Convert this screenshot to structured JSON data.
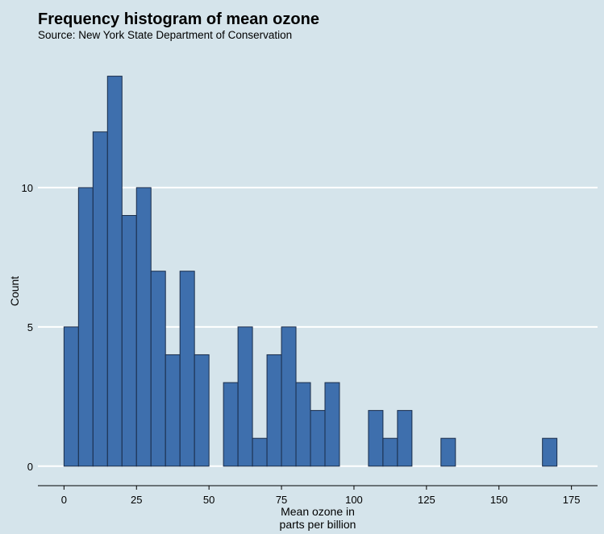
{
  "chart_data": {
    "type": "bar",
    "title": "Frequency histogram of mean ozone",
    "subtitle": "Source: New York State Department of Conservation",
    "xlabel_lines": [
      "Mean ozone in",
      "parts per billion"
    ],
    "ylabel": "Count",
    "bin_width": 5,
    "xlim": [
      -9,
      184
    ],
    "ylim": [
      -0.7,
      15
    ],
    "x_ticks": [
      0,
      25,
      50,
      75,
      100,
      125,
      150,
      175
    ],
    "y_ticks": [
      0,
      5,
      10
    ],
    "grid": "horizontal",
    "bins": [
      {
        "x": 2.5,
        "count": 5
      },
      {
        "x": 7.5,
        "count": 10
      },
      {
        "x": 12.5,
        "count": 12
      },
      {
        "x": 17.5,
        "count": 14
      },
      {
        "x": 22.5,
        "count": 9
      },
      {
        "x": 27.5,
        "count": 10
      },
      {
        "x": 32.5,
        "count": 7
      },
      {
        "x": 37.5,
        "count": 4
      },
      {
        "x": 42.5,
        "count": 7
      },
      {
        "x": 47.5,
        "count": 4
      },
      {
        "x": 52.5,
        "count": 0
      },
      {
        "x": 57.5,
        "count": 3
      },
      {
        "x": 62.5,
        "count": 5
      },
      {
        "x": 67.5,
        "count": 1
      },
      {
        "x": 72.5,
        "count": 4
      },
      {
        "x": 77.5,
        "count": 5
      },
      {
        "x": 82.5,
        "count": 3
      },
      {
        "x": 87.5,
        "count": 2
      },
      {
        "x": 92.5,
        "count": 3
      },
      {
        "x": 97.5,
        "count": 0
      },
      {
        "x": 102.5,
        "count": 0
      },
      {
        "x": 107.5,
        "count": 2
      },
      {
        "x": 112.5,
        "count": 1
      },
      {
        "x": 117.5,
        "count": 2
      },
      {
        "x": 122.5,
        "count": 0
      },
      {
        "x": 127.5,
        "count": 0
      },
      {
        "x": 132.5,
        "count": 1
      },
      {
        "x": 137.5,
        "count": 0
      },
      {
        "x": 142.5,
        "count": 0
      },
      {
        "x": 147.5,
        "count": 0
      },
      {
        "x": 152.5,
        "count": 0
      },
      {
        "x": 157.5,
        "count": 0
      },
      {
        "x": 162.5,
        "count": 0
      },
      {
        "x": 167.5,
        "count": 1
      }
    ],
    "colors": {
      "background": "#d5e4eb",
      "bar_fill": "#3e6fad",
      "bar_stroke": "#1a2d4a",
      "grid": "#ffffff",
      "axis": "#000000"
    }
  }
}
